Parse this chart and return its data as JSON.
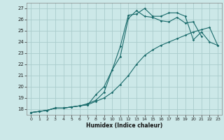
{
  "xlabel": "Humidex (Indice chaleur)",
  "bg_color": "#cce8e8",
  "grid_color": "#aacccc",
  "line_color": "#1a6b6b",
  "xlim": [
    -0.5,
    23.5
  ],
  "ylim": [
    17.5,
    27.5
  ],
  "xticks": [
    0,
    1,
    2,
    3,
    4,
    5,
    6,
    7,
    8,
    9,
    10,
    11,
    12,
    13,
    14,
    15,
    16,
    17,
    18,
    19,
    20,
    21,
    22,
    23
  ],
  "yticks": [
    18,
    19,
    20,
    21,
    22,
    23,
    24,
    25,
    26,
    27
  ],
  "line1": {
    "x": [
      0,
      1,
      2,
      3,
      4,
      5,
      6,
      7,
      8,
      9,
      10,
      11,
      12,
      13,
      14,
      15,
      16,
      17,
      18,
      19,
      20,
      21,
      22,
      23
    ],
    "y": [
      17.7,
      17.8,
      17.9,
      18.1,
      18.1,
      18.2,
      18.3,
      18.5,
      18.8,
      19.5,
      21.5,
      23.6,
      26.4,
      26.5,
      27.0,
      26.3,
      26.3,
      26.6,
      26.6,
      26.3,
      24.2,
      24.9,
      24.0,
      23.7
    ]
  },
  "line2": {
    "x": [
      0,
      1,
      2,
      3,
      4,
      5,
      6,
      7,
      8,
      9,
      10,
      11,
      12,
      13,
      14,
      15,
      16,
      17,
      18,
      19,
      20,
      21,
      22,
      23
    ],
    "y": [
      17.7,
      17.8,
      17.9,
      18.1,
      18.1,
      18.2,
      18.3,
      18.4,
      19.3,
      20.0,
      21.5,
      22.7,
      26.1,
      26.8,
      26.3,
      26.2,
      25.9,
      25.8,
      26.2,
      25.7,
      25.8,
      24.5,
      null,
      null
    ]
  },
  "line3": {
    "x": [
      0,
      1,
      2,
      3,
      4,
      5,
      6,
      7,
      8,
      9,
      10,
      11,
      12,
      13,
      14,
      15,
      16,
      17,
      18,
      19,
      20,
      21,
      22,
      23
    ],
    "y": [
      17.7,
      17.8,
      17.9,
      18.1,
      18.1,
      18.2,
      18.3,
      18.4,
      18.7,
      19.0,
      19.5,
      20.2,
      21.0,
      22.0,
      22.8,
      23.3,
      23.7,
      24.0,
      24.3,
      24.6,
      24.9,
      25.1,
      25.3,
      23.7
    ]
  }
}
